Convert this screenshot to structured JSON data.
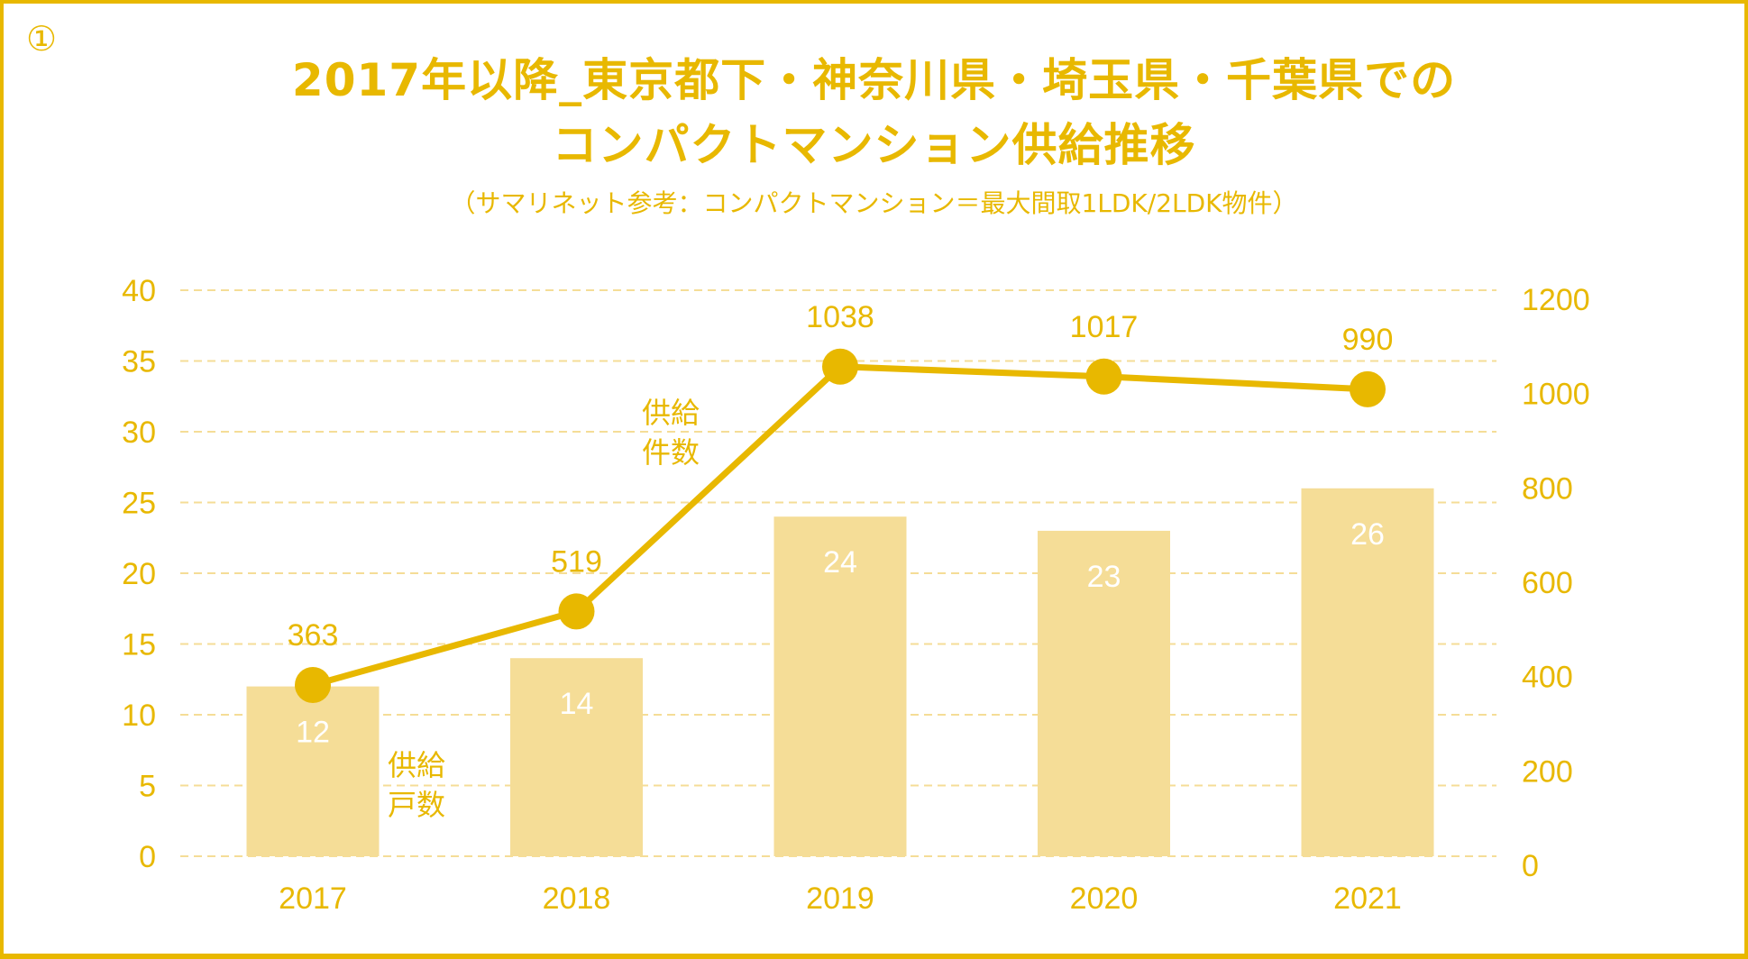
{
  "marker": "①",
  "title_line1": "2017年以降_東京都下・神奈川県・埼玉県・千葉県での",
  "title_line2": "コンパクトマンション供給推移",
  "subtitle": "（サマリネット参考：コンパクトマンション＝最大間取1LDK/2LDK物件）",
  "colors": {
    "accent": "#E8B800",
    "bar": "#F5DD97",
    "grid": "#F5DD97",
    "border": "#E8B800"
  },
  "chart_data": {
    "type": "bar+line",
    "title": "2017年以降_東京都下・神奈川県・埼玉県・千葉県でのコンパクトマンション供給推移",
    "subtitle": "（サマリネット参考：コンパクトマンション＝最大間取1LDK/2LDK物件）",
    "categories": [
      "2017",
      "2018",
      "2019",
      "2020",
      "2021"
    ],
    "series": [
      {
        "name": "供給戸数",
        "name_lines": [
          "供給",
          "戸数"
        ],
        "type": "bar",
        "axis": "left",
        "values": [
          12,
          14,
          24,
          23,
          26
        ]
      },
      {
        "name": "供給件数",
        "name_lines": [
          "供給",
          "件数"
        ],
        "type": "line",
        "axis": "right",
        "values": [
          363,
          519,
          1038,
          1017,
          990
        ]
      }
    ],
    "left_axis": {
      "ylim": [
        0,
        40
      ],
      "ticks": [
        0,
        5,
        10,
        15,
        20,
        25,
        30,
        35,
        40
      ]
    },
    "right_axis": {
      "ylim": [
        0,
        1200
      ],
      "ticks": [
        0,
        200,
        400,
        600,
        800,
        1000,
        1200
      ]
    },
    "xlabel": "",
    "ylabel": "",
    "grid": true,
    "legend": "inline"
  }
}
